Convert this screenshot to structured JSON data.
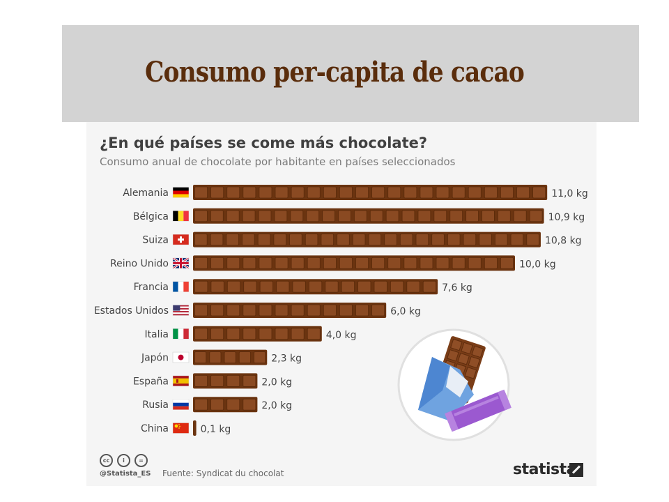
{
  "header": {
    "title": "Consumo per-capita de cacao"
  },
  "chart": {
    "title": "¿En qué países se come más chocolate?",
    "subtitle": "Consumo anual de chocolate por habitante en países seleccionados"
  },
  "footer": {
    "handle": "@Statista_ES",
    "source": "Fuente: Syndicat du chocolat",
    "brand": "statista"
  },
  "colors": {
    "header_bg": "#d3d3d3",
    "title": "#5a2d0c",
    "bar": "#6b3410",
    "bar_light": "#8a4a22",
    "panel_bg": "#f5f5f5"
  },
  "chart_data": {
    "type": "bar",
    "orientation": "horizontal",
    "unit": "kg",
    "categories": [
      "Alemania",
      "Bélgica",
      "Suiza",
      "Reino Unido",
      "Francia",
      "Estados Unidos",
      "Italia",
      "Japón",
      "España",
      "Rusia",
      "China"
    ],
    "values": [
      11.0,
      10.9,
      10.8,
      10.0,
      7.6,
      6.0,
      4.0,
      2.3,
      2.0,
      2.0,
      0.1
    ],
    "value_labels": [
      "11,0 kg",
      "10,9 kg",
      "10,8 kg",
      "10,0 kg",
      "7,6 kg",
      "6,0 kg",
      "4,0 kg",
      "2,3 kg",
      "2,0 kg",
      "2,0 kg",
      "0,1 kg"
    ],
    "flags": [
      "germany-flag",
      "belgium-flag",
      "switzerland-flag",
      "uk-flag",
      "france-flag",
      "usa-flag",
      "italy-flag",
      "japan-flag",
      "spain-flag",
      "russia-flag",
      "china-flag"
    ],
    "xlim": [
      0,
      11
    ]
  }
}
